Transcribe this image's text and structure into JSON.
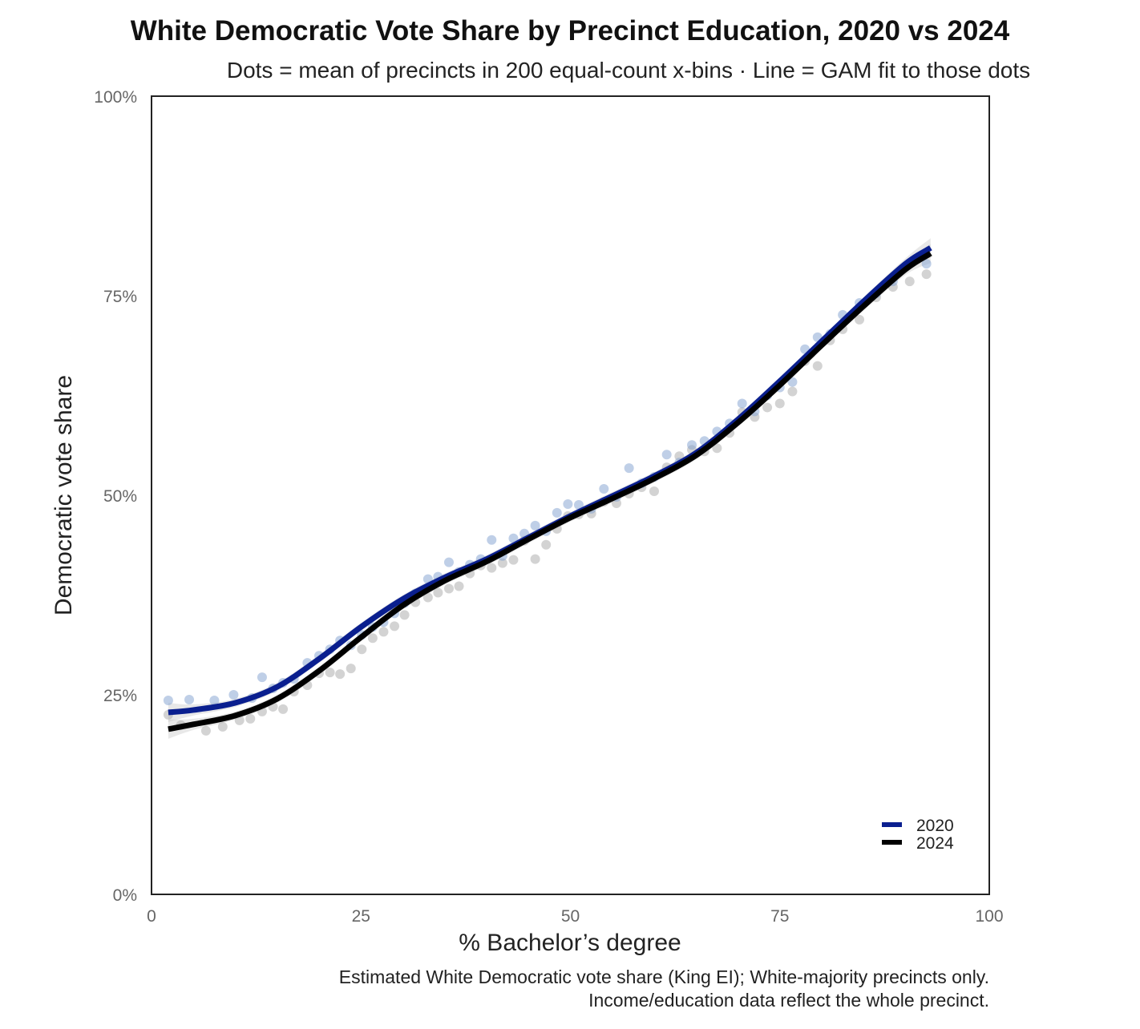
{
  "chart_data": {
    "type": "scatter",
    "title": "White Democratic Vote Share by Precinct Education, 2020 vs 2024",
    "subtitle": "Dots = mean of precincts in 200 equal-count x-bins · Line = GAM fit to those dots",
    "xlabel": "% Bachelor’s degree",
    "ylabel": "Democratic vote share",
    "caption_lines": [
      "Estimated White Democratic vote share (King EI); White-majority precincts only.",
      "Income/education data reflect the whole precinct."
    ],
    "xlim": [
      0,
      100
    ],
    "ylim": [
      0,
      1
    ],
    "x_ticks": [
      0,
      25,
      50,
      75,
      100
    ],
    "x_tick_labels": [
      "0",
      "25",
      "50",
      "75",
      "100"
    ],
    "y_ticks": [
      0,
      0.25,
      0.5,
      0.75,
      1
    ],
    "y_tick_labels": [
      "0%",
      "25%",
      "50%",
      "75%",
      "100%"
    ],
    "grid": false,
    "legend_position": "bottom-right",
    "series": [
      {
        "name": "2020",
        "line_color": "#0a1f8f",
        "dot_color": "#7f9fcf",
        "fit": {
          "x": [
            2,
            5,
            10,
            15,
            20,
            25,
            30,
            35,
            40,
            45,
            50,
            55,
            60,
            65,
            70,
            75,
            80,
            85,
            90,
            93
          ],
          "y": [
            0.228,
            0.231,
            0.24,
            0.26,
            0.295,
            0.335,
            0.37,
            0.397,
            0.42,
            0.447,
            0.474,
            0.499,
            0.524,
            0.553,
            0.595,
            0.643,
            0.693,
            0.743,
            0.79,
            0.81
          ]
        },
        "points": {
          "x": [
            2,
            4.5,
            7.5,
            9.8,
            12,
            13.2,
            14.5,
            15.7,
            17,
            18.6,
            20,
            21.3,
            22.5,
            23.8,
            25.1,
            26.4,
            27.7,
            29,
            30.2,
            31.5,
            33,
            34.2,
            35.5,
            36.7,
            38,
            39.3,
            40.6,
            41.9,
            43.2,
            44.5,
            45.8,
            47.1,
            48.4,
            49.7,
            51,
            52.5,
            54,
            55.5,
            57,
            58.5,
            60,
            61.5,
            63,
            64.5,
            66,
            67.5,
            69,
            70.5,
            72,
            73.5,
            75,
            76.5,
            78,
            79.5,
            81,
            82.5,
            84.5,
            86.5,
            88.5,
            90.5,
            92.5
          ],
          "y": [
            0.243,
            0.244,
            0.243,
            0.25,
            0.246,
            0.272,
            0.258,
            0.265,
            0.27,
            0.29,
            0.299,
            0.307,
            0.318,
            0.312,
            0.325,
            0.335,
            0.341,
            0.352,
            0.365,
            0.377,
            0.395,
            0.398,
            0.416,
            0.404,
            0.413,
            0.42,
            0.444,
            0.424,
            0.446,
            0.452,
            0.462,
            0.455,
            0.478,
            0.489,
            0.488,
            0.483,
            0.508,
            0.498,
            0.534,
            0.515,
            0.523,
            0.551,
            0.541,
            0.563,
            0.568,
            0.58,
            0.59,
            0.615,
            0.605,
            0.625,
            0.635,
            0.642,
            0.683,
            0.698,
            0.702,
            0.726,
            0.741,
            0.753,
            0.768,
            0.79,
            0.79
          ]
        }
      },
      {
        "name": "2024",
        "line_color": "#000000",
        "dot_color": "#a8a8a8",
        "fit": {
          "x": [
            2,
            5,
            10,
            15,
            20,
            25,
            30,
            35,
            40,
            45,
            50,
            55,
            60,
            65,
            70,
            75,
            80,
            85,
            90,
            93
          ],
          "y": [
            0.207,
            0.213,
            0.224,
            0.245,
            0.28,
            0.322,
            0.362,
            0.393,
            0.417,
            0.445,
            0.472,
            0.496,
            0.521,
            0.55,
            0.591,
            0.638,
            0.688,
            0.737,
            0.783,
            0.803
          ]
        },
        "points": {
          "x": [
            2,
            3.5,
            6.5,
            8.5,
            10.5,
            11.8,
            13.2,
            14.5,
            15.7,
            17,
            18.6,
            20,
            21.3,
            22.5,
            23.8,
            25.1,
            26.4,
            27.7,
            29,
            30.2,
            31.5,
            33,
            34.2,
            35.5,
            36.7,
            38,
            39.3,
            40.6,
            41.9,
            43.2,
            44.5,
            45.8,
            47.1,
            48.4,
            49.7,
            51,
            52.5,
            54,
            55.5,
            57,
            58.5,
            60,
            61.5,
            63,
            64.5,
            66,
            67.5,
            69,
            70.5,
            72,
            73.5,
            75,
            76.5,
            78,
            79.5,
            81,
            82.5,
            84.5,
            86.5,
            88.5,
            90.5,
            92.5
          ],
          "y": [
            0.225,
            0.212,
            0.205,
            0.21,
            0.218,
            0.22,
            0.229,
            0.235,
            0.232,
            0.254,
            0.262,
            0.277,
            0.278,
            0.276,
            0.283,
            0.307,
            0.321,
            0.329,
            0.336,
            0.35,
            0.366,
            0.372,
            0.378,
            0.383,
            0.386,
            0.402,
            0.412,
            0.409,
            0.415,
            0.419,
            0.443,
            0.42,
            0.438,
            0.458,
            0.474,
            0.476,
            0.477,
            0.492,
            0.49,
            0.502,
            0.51,
            0.505,
            0.535,
            0.549,
            0.557,
            0.555,
            0.559,
            0.578,
            0.604,
            0.598,
            0.61,
            0.615,
            0.63,
            0.668,
            0.662,
            0.694,
            0.708,
            0.72,
            0.748,
            0.761,
            0.768,
            0.777
          ]
        }
      }
    ]
  }
}
